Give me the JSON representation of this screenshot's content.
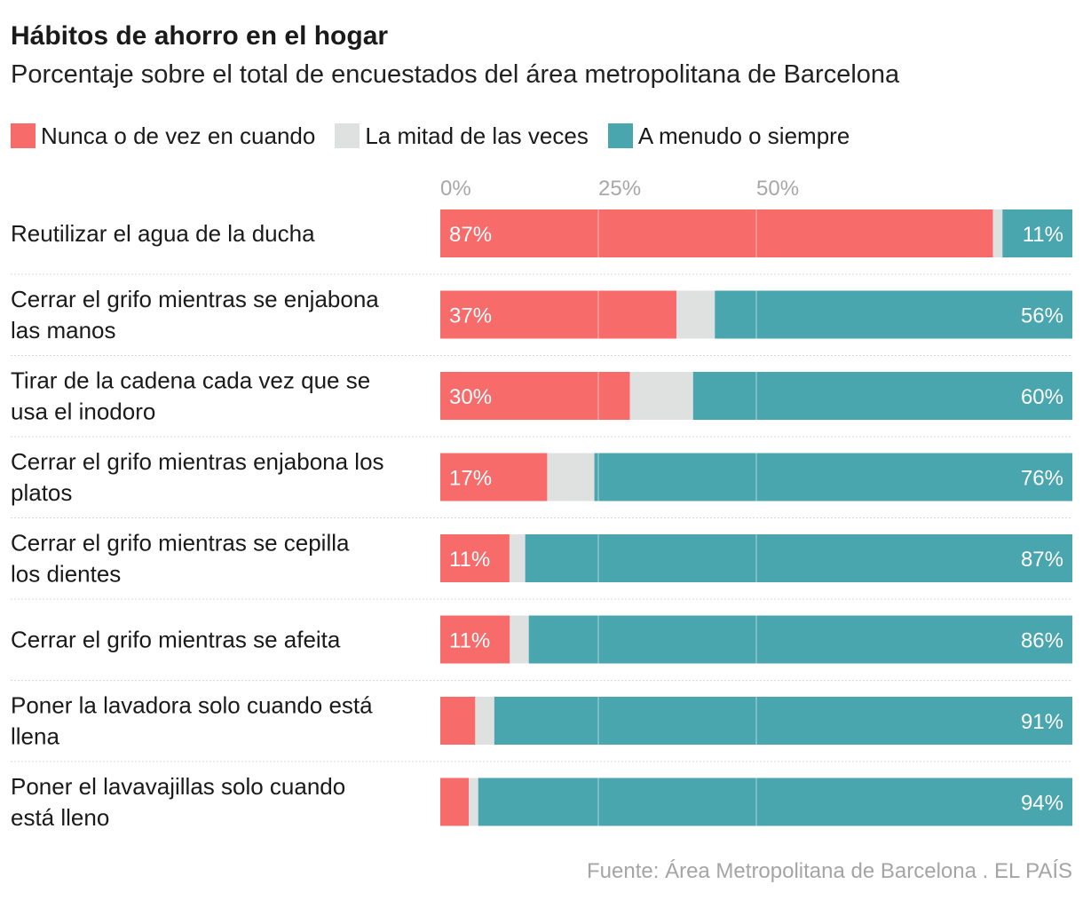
{
  "title": "Hábitos de ahorro en el hogar",
  "subtitle": "Porcentaje sobre el total de encuestados del área metropolitana de Barcelona",
  "legend": [
    {
      "label": "Nunca o de vez en cuando",
      "color": "#f76b6b"
    },
    {
      "label": "La mitad de las veces",
      "color": "#dfe1e1"
    },
    {
      "label": "A menudo o siempre",
      "color": "#49a5ae"
    }
  ],
  "source": "Fuente: Área Metropolitana de Barcelona . EL PAÍS",
  "chart_data": {
    "type": "bar",
    "orientation": "horizontal",
    "stacked": true,
    "xlim": [
      0,
      100
    ],
    "ticks": [
      {
        "value": 0,
        "label": "0%"
      },
      {
        "value": 25,
        "label": "25%"
      },
      {
        "value": 50,
        "label": "50%"
      }
    ],
    "grid": true,
    "categories": [
      [
        "Reutilizar el agua de la ducha"
      ],
      [
        "Cerrar el grifo mientras se enjabona",
        "las manos"
      ],
      [
        "Tirar de la cadena cada vez que se",
        "usa el inodoro"
      ],
      [
        "Cerrar el grifo mientras enjabona los",
        "platos"
      ],
      [
        "Cerrar el grifo mientras se cepilla",
        "los dientes"
      ],
      [
        "Cerrar el grifo mientras se afeita"
      ],
      [
        "Poner la lavadora solo cuando está",
        "llena"
      ],
      [
        "Poner el lavavajillas solo cuando",
        "está lleno"
      ]
    ],
    "series": [
      {
        "name": "Nunca o de vez en cuando",
        "color": "#f76b6b",
        "values": [
          87,
          37,
          30,
          17,
          11,
          11,
          5.5,
          4.5
        ],
        "labels": [
          "87%",
          "37%",
          "30%",
          "17%",
          "11%",
          "11%",
          "",
          ""
        ]
      },
      {
        "name": "La mitad de las veces",
        "color": "#dfe1e1",
        "values": [
          1.5,
          6,
          10,
          7.5,
          2.5,
          3,
          3,
          1.5
        ],
        "labels": [
          "",
          "",
          "",
          "",
          "",
          "",
          "",
          ""
        ]
      },
      {
        "name": "A menudo o siempre",
        "color": "#49a5ae",
        "values": [
          11,
          56,
          60,
          76,
          87,
          86,
          91,
          94
        ],
        "labels": [
          "11%",
          "56%",
          "60%",
          "76%",
          "87%",
          "86%",
          "91%",
          "94%"
        ]
      }
    ]
  }
}
